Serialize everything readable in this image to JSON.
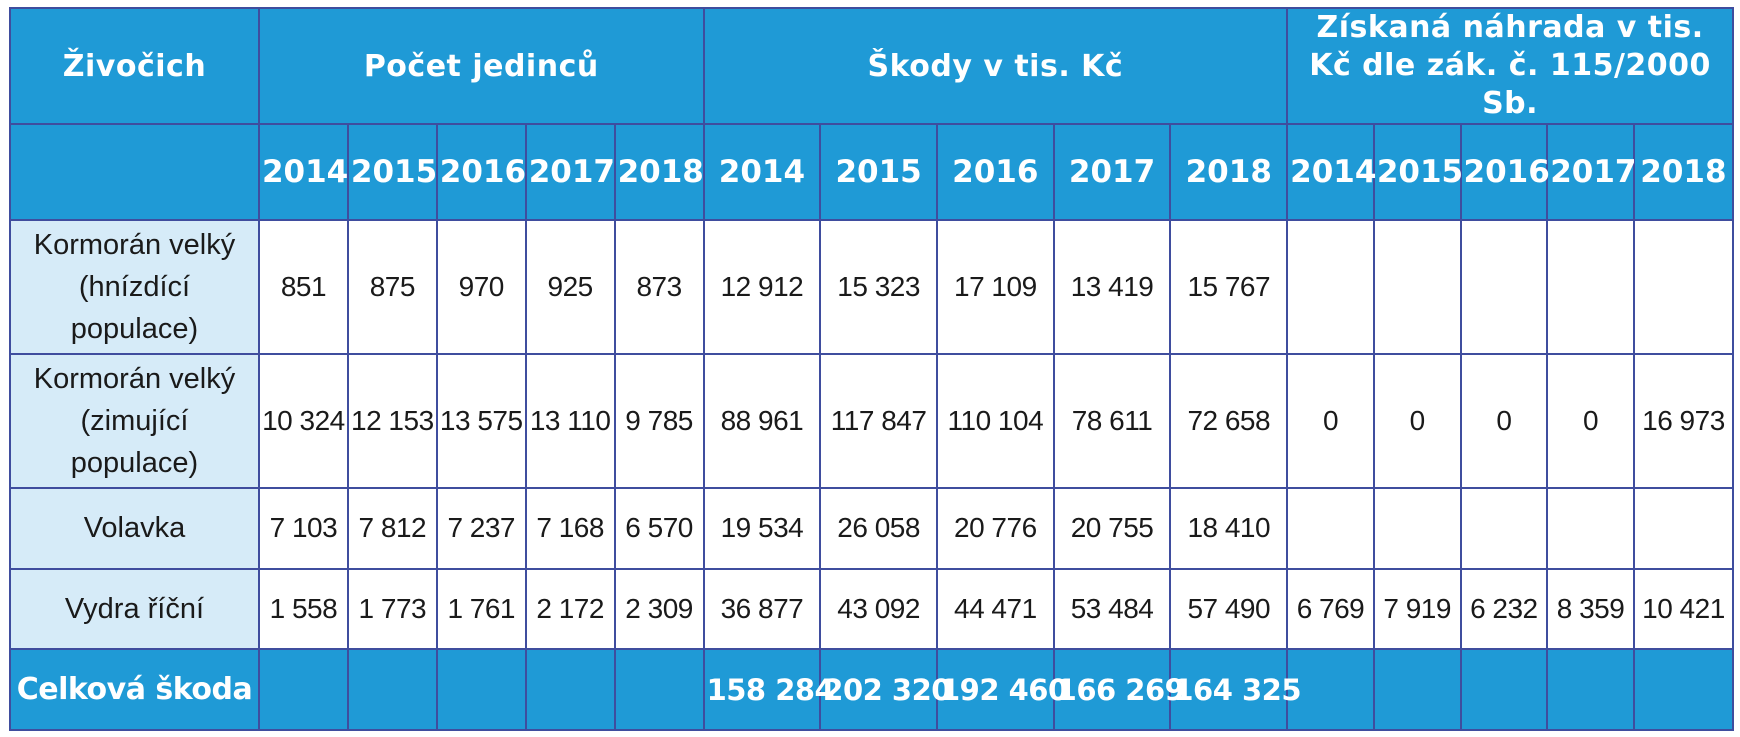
{
  "headers": {
    "animal": "Živočich",
    "count": "Počet jedinců",
    "damage": "Škody v tis. Kč",
    "compensation": "Získaná náhrada v tis. Kč dle zák. č. 115/2000 Sb."
  },
  "years": [
    "2014",
    "2015",
    "2016",
    "2017",
    "2018"
  ],
  "rows": [
    {
      "name": "Kormorán velký (hnízdící populace)",
      "count": [
        "851",
        "875",
        "970",
        "925",
        "873"
      ],
      "damage": [
        "12 912",
        "15 323",
        "17 109",
        "13 419",
        "15 767"
      ],
      "compensation": [
        "",
        "",
        "",
        "",
        ""
      ]
    },
    {
      "name": "Kormorán velký (zimující populace)",
      "count": [
        "10 324",
        "12 153",
        "13 575",
        "13 110",
        "9 785"
      ],
      "damage": [
        "88 961",
        "117 847",
        "110 104",
        "78 611",
        "72 658"
      ],
      "compensation": [
        "0",
        "0",
        "0",
        "0",
        "16 973"
      ]
    },
    {
      "name": "Volavka",
      "count": [
        "7 103",
        "7 812",
        "7 237",
        "7 168",
        "6 570"
      ],
      "damage": [
        "19 534",
        "26 058",
        "20 776",
        "20 755",
        "18 410"
      ],
      "compensation": [
        "",
        "",
        "",
        "",
        ""
      ]
    },
    {
      "name": "Vydra říční",
      "count": [
        "1 558",
        "1 773",
        "1 761",
        "2 172",
        "2 309"
      ],
      "damage": [
        "36 877",
        "43 092",
        "44 471",
        "53 484",
        "57 490"
      ],
      "compensation": [
        "6 769",
        "7 919",
        "6 232",
        "8 359",
        "10 421"
      ]
    }
  ],
  "total": {
    "label": "Celková škoda",
    "damage": [
      "158 284",
      "202 320",
      "192 460",
      "166 269",
      "164 325"
    ]
  },
  "colors": {
    "header_bg": "#1f9ad6",
    "name_cell_bg": "#d6ebf8",
    "border": "#3f4d9e"
  }
}
